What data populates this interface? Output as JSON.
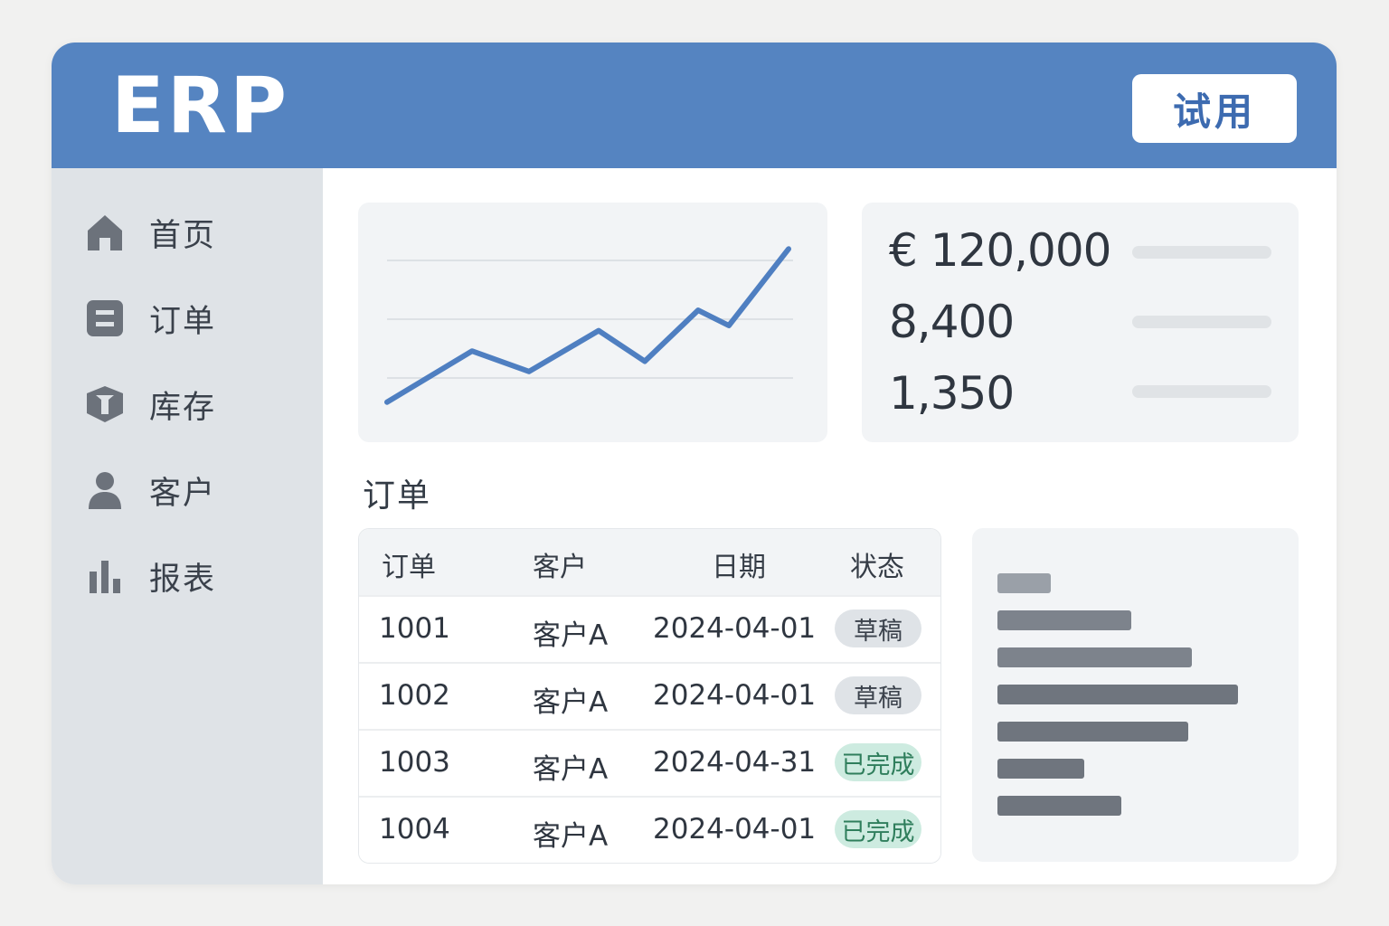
{
  "header": {
    "logo": "ERP",
    "trial_label": "试用"
  },
  "sidebar": {
    "items": [
      {
        "label": "首页",
        "icon": "home-icon"
      },
      {
        "label": "订单",
        "icon": "order-icon"
      },
      {
        "label": "库存",
        "icon": "box-icon"
      },
      {
        "label": "客户",
        "icon": "user-icon"
      },
      {
        "label": "报表",
        "icon": "bar-chart-icon"
      }
    ]
  },
  "kpis": {
    "values": [
      "€ 120,000",
      "8,400",
      "1,350"
    ]
  },
  "orders": {
    "title": "订单",
    "columns": [
      "订单",
      "客户",
      "日期",
      "状态"
    ],
    "rows": [
      {
        "id": "1001",
        "customer": "客户A",
        "date": "2024-04-01",
        "status": "草稿",
        "status_type": "draft"
      },
      {
        "id": "1002",
        "customer": "客户A",
        "date": "2024-04-01",
        "status": "草稿",
        "status_type": "draft"
      },
      {
        "id": "1003",
        "customer": "客户A",
        "date": "2024-04-31",
        "status": "已完成",
        "status_type": "done"
      },
      {
        "id": "1004",
        "customer": "客户A",
        "date": "2024-04-01",
        "status": "已完成",
        "status_type": "done"
      }
    ]
  },
  "line_chart": {
    "type": "line",
    "values": [
      1,
      6,
      4,
      8,
      5,
      10,
      8.5,
      16
    ],
    "ylim": [
      0,
      17
    ],
    "grid": true,
    "color": "#4f7fc1"
  },
  "bar_panel": {
    "values": [
      0.16,
      0.4,
      0.58,
      0.72,
      0.57,
      0.26,
      0.37
    ],
    "colors": [
      "#9aa0a8",
      "#7d838c",
      "#7d838c",
      "#6f757e",
      "#6f757e",
      "#6f757e",
      "#6f757e"
    ]
  },
  "colors": {
    "accent": "#5584c1",
    "done": "#cdebe0",
    "draft": "#dfe3e7"
  }
}
